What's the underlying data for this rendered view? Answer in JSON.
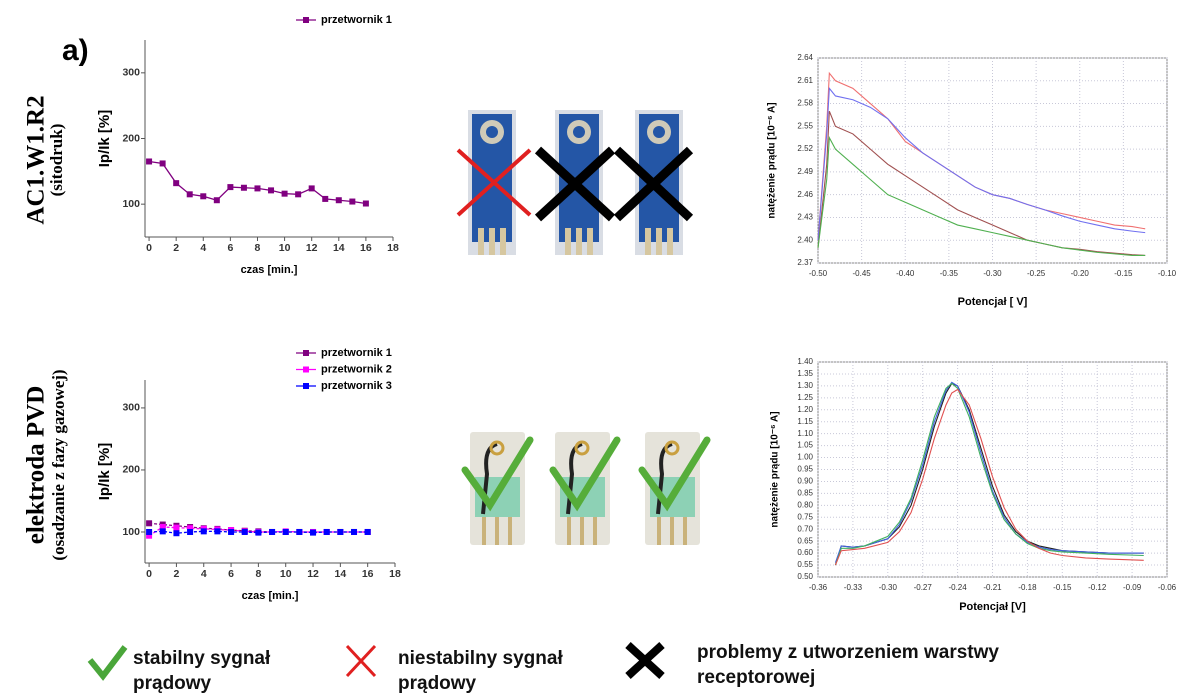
{
  "label": "a)",
  "rows": [
    {
      "title": "AC1.W1.R2",
      "subtitle": "(sitodruk)"
    },
    {
      "title": "elektroda PVD",
      "subtitle": "(osadzanie z fazy gazowej)"
    }
  ],
  "chart_data": [
    {
      "type": "line",
      "xlabel": "czas [min.]",
      "ylabel": "Ip/Ik [%]",
      "markers": true,
      "grid": false,
      "x": [
        0,
        1,
        2,
        3,
        4,
        5,
        6,
        7,
        8,
        9,
        10,
        11,
        12,
        13,
        14,
        15,
        16
      ],
      "series": [
        {
          "name": "przetwornik 1",
          "color": "#800080",
          "values": [
            165,
            162,
            132,
            115,
            112,
            106,
            126,
            125,
            124,
            121,
            116,
            115,
            124,
            108,
            106,
            104,
            101
          ]
        }
      ],
      "xlim": [
        -0.3,
        18
      ],
      "ylim": [
        50,
        350
      ],
      "xticks": [
        0,
        2,
        4,
        6,
        8,
        10,
        12,
        14,
        16,
        18
      ],
      "yticks": [
        100,
        200,
        300
      ]
    },
    {
      "type": "line",
      "xlabel": "czas [min.]",
      "ylabel": "Ip/Ik [%]",
      "markers": true,
      "grid": false,
      "x": [
        0,
        1,
        2,
        3,
        4,
        5,
        6,
        7,
        8,
        9,
        10,
        11,
        12,
        13,
        14,
        15,
        16
      ],
      "series": [
        {
          "name": "przetwornik 1",
          "color": "#800080",
          "values": [
            114,
            112,
            110,
            108,
            106,
            105,
            103,
            102,
            101,
            100,
            100,
            100,
            100,
            100,
            100,
            100,
            100
          ]
        },
        {
          "name": "przetwornik 2",
          "color": "#ff00ff",
          "values": [
            94,
            108,
            107,
            106,
            105,
            104,
            103,
            101,
            100,
            100,
            101,
            100,
            100,
            100,
            100,
            100,
            100
          ]
        },
        {
          "name": "przetwornik 3",
          "color": "#0000ff",
          "values": [
            100,
            101,
            98,
            100,
            101,
            101,
            100,
            100,
            99,
            100,
            100,
            100,
            99,
            100,
            100,
            100,
            100
          ]
        }
      ],
      "xlim": [
        -0.3,
        18
      ],
      "ylim": [
        50,
        345
      ],
      "xticks": [
        0,
        2,
        4,
        6,
        8,
        10,
        12,
        14,
        16,
        18
      ],
      "yticks": [
        100,
        200,
        300
      ]
    },
    {
      "type": "line",
      "xlabel": "Potencjał [ V]",
      "ylabel": "natężenie prądu [10⁻⁶ A]",
      "markers": false,
      "grid": true,
      "x": [
        -0.5,
        -0.49,
        -0.487,
        -0.48,
        -0.46,
        -0.44,
        -0.42,
        -0.4,
        -0.38,
        -0.36,
        -0.34,
        -0.32,
        -0.3,
        -0.28,
        -0.26,
        -0.24,
        -0.22,
        -0.2,
        -0.18,
        -0.16,
        -0.14,
        -0.125
      ],
      "series": [
        {
          "color": "#f07070",
          "values": [
            2.4,
            2.55,
            2.62,
            2.61,
            2.6,
            2.58,
            2.56,
            2.53,
            2.515,
            2.5,
            2.485,
            2.47,
            2.46,
            2.455,
            2.447,
            2.44,
            2.435,
            2.43,
            2.425,
            2.42,
            2.418,
            2.415
          ]
        },
        {
          "color": "#7070f0",
          "values": [
            2.4,
            2.54,
            2.6,
            2.59,
            2.585,
            2.575,
            2.56,
            2.535,
            2.515,
            2.5,
            2.485,
            2.47,
            2.46,
            2.455,
            2.447,
            2.44,
            2.432,
            2.425,
            2.42,
            2.415,
            2.412,
            2.41
          ]
        },
        {
          "color": "#a05050",
          "values": [
            2.39,
            2.5,
            2.57,
            2.55,
            2.54,
            2.52,
            2.5,
            2.485,
            2.47,
            2.455,
            2.44,
            2.43,
            2.42,
            2.41,
            2.4,
            2.395,
            2.39,
            2.388,
            2.385,
            2.383,
            2.381,
            2.38
          ]
        },
        {
          "color": "#50b050",
          "values": [
            2.39,
            2.48,
            2.535,
            2.52,
            2.5,
            2.48,
            2.46,
            2.45,
            2.44,
            2.43,
            2.42,
            2.415,
            2.41,
            2.405,
            2.4,
            2.395,
            2.39,
            2.387,
            2.384,
            2.382,
            2.38,
            2.38
          ]
        }
      ],
      "xlim": [
        -0.5,
        -0.1
      ],
      "ylim": [
        2.37,
        2.64
      ],
      "xticks": [
        {
          "value": -0.5,
          "label": "-0.50"
        },
        -0.45,
        {
          "value": -0.4,
          "label": "-0.40"
        },
        -0.35,
        {
          "value": -0.3,
          "label": "-0.30"
        },
        -0.25,
        {
          "value": -0.2,
          "label": "-0.20"
        },
        -0.15,
        {
          "value": -0.1,
          "label": "-0.10"
        }
      ],
      "yticks": [
        2.37,
        {
          "value": 2.4,
          "label": "2.40"
        },
        2.43,
        2.46,
        2.49,
        2.52,
        2.55,
        2.58,
        2.61,
        2.64
      ]
    },
    {
      "type": "line",
      "xlabel": "Potencjał [V]",
      "ylabel": "natężenie prądu [10⁻⁶ A]",
      "markers": false,
      "grid": true,
      "x": [
        -0.345,
        -0.34,
        -0.33,
        -0.32,
        -0.3,
        -0.29,
        -0.28,
        -0.27,
        -0.26,
        -0.25,
        -0.245,
        -0.24,
        -0.23,
        -0.22,
        -0.21,
        -0.2,
        -0.19,
        -0.18,
        -0.17,
        -0.16,
        -0.15,
        -0.13,
        -0.11,
        -0.08
      ],
      "series": [
        {
          "color": "#202020",
          "values": [
            0.55,
            0.63,
            0.625,
            0.63,
            0.66,
            0.71,
            0.8,
            0.95,
            1.13,
            1.27,
            1.31,
            1.3,
            1.2,
            1.04,
            0.88,
            0.76,
            0.69,
            0.65,
            0.63,
            0.62,
            0.61,
            0.605,
            0.6,
            0.6
          ]
        },
        {
          "color": "#4060e0",
          "values": [
            0.56,
            0.63,
            0.625,
            0.63,
            0.66,
            0.72,
            0.82,
            0.97,
            1.15,
            1.28,
            1.315,
            1.3,
            1.19,
            1.02,
            0.86,
            0.75,
            0.68,
            0.645,
            0.625,
            0.615,
            0.61,
            0.605,
            0.6,
            0.6
          ]
        },
        {
          "color": "#40b060",
          "values": [
            0.55,
            0.62,
            0.62,
            0.63,
            0.67,
            0.73,
            0.83,
            0.99,
            1.17,
            1.29,
            1.31,
            1.29,
            1.17,
            1.0,
            0.85,
            0.74,
            0.68,
            0.64,
            0.62,
            0.61,
            0.605,
            0.6,
            0.595,
            0.59
          ]
        },
        {
          "color": "#e05050",
          "values": [
            0.55,
            0.61,
            0.615,
            0.62,
            0.645,
            0.69,
            0.77,
            0.91,
            1.08,
            1.22,
            1.27,
            1.285,
            1.22,
            1.08,
            0.92,
            0.79,
            0.7,
            0.65,
            0.62,
            0.6,
            0.59,
            0.58,
            0.575,
            0.57
          ]
        }
      ],
      "xlim": [
        -0.36,
        -0.06
      ],
      "ylim": [
        0.5,
        1.4
      ],
      "xticks": [
        -0.36,
        -0.33,
        {
          "value": -0.3,
          "label": "-0.30"
        },
        -0.27,
        -0.24,
        -0.21,
        -0.18,
        -0.15,
        -0.12,
        -0.09,
        -0.06
      ],
      "yticks": [
        {
          "value": 0.5,
          "label": "0.50"
        },
        0.55,
        {
          "value": 0.6,
          "label": "0.60"
        },
        0.65,
        {
          "value": 0.7,
          "label": "0.70"
        },
        0.75,
        {
          "value": 0.8,
          "label": "0.80"
        },
        0.85,
        {
          "value": 0.9,
          "label": "0.90"
        },
        0.95,
        {
          "value": 1.0,
          "label": "1.00"
        },
        1.05,
        {
          "value": 1.1,
          "label": "1.10"
        },
        1.15,
        {
          "value": 1.2,
          "label": "1.20"
        },
        1.25,
        {
          "value": 1.3,
          "label": "1.30"
        },
        1.35,
        {
          "value": 1.4,
          "label": "1.40"
        }
      ]
    }
  ],
  "legend": [
    "stabilny sygnał prądowy",
    "niestabilny sygnał prądowy",
    "problemy z utworzeniem warstwy receptorowej"
  ]
}
